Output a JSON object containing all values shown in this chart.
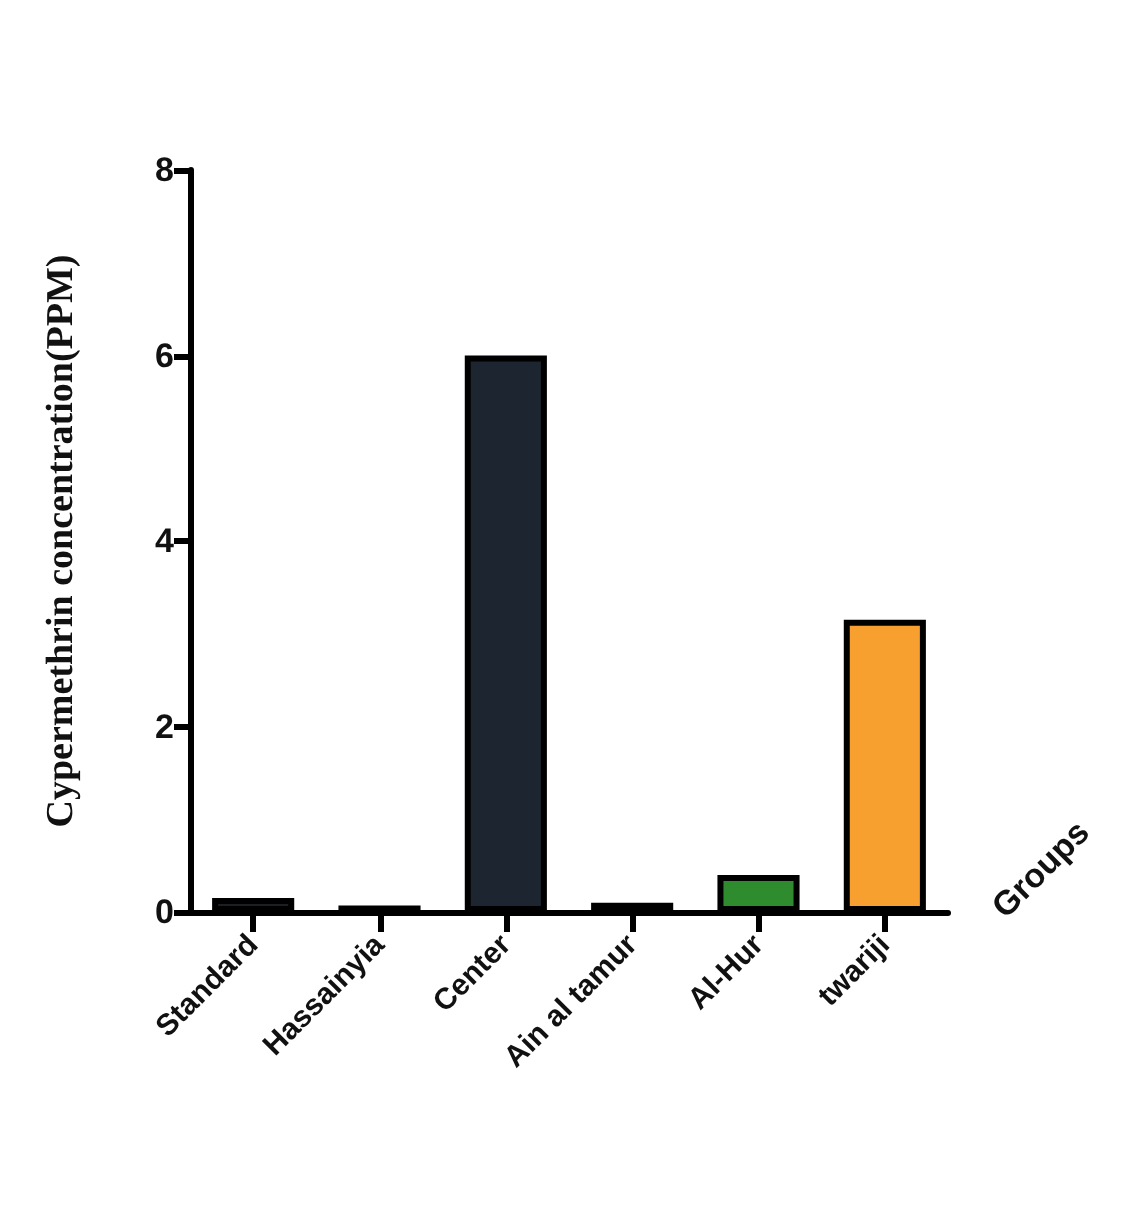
{
  "chart_data": {
    "type": "bar",
    "ylabel": "Cypermethrin concentration(PPM)",
    "xlabel": "Groups",
    "categories": [
      "Standard",
      "Hassainyia",
      "Center",
      "Ain al tamur",
      "Al-Hur",
      "twariji"
    ],
    "values": [
      0.15,
      0.07,
      6.0,
      0.1,
      0.4,
      3.15
    ],
    "colors": [
      "#1c1f24",
      "#1c1f24",
      "#1c2530",
      "#1c1f24",
      "#2e8b2e",
      "#f7a030"
    ],
    "ylim": [
      0,
      8
    ],
    "yticks": [
      0,
      2,
      4,
      6,
      8
    ],
    "grid": false
  }
}
